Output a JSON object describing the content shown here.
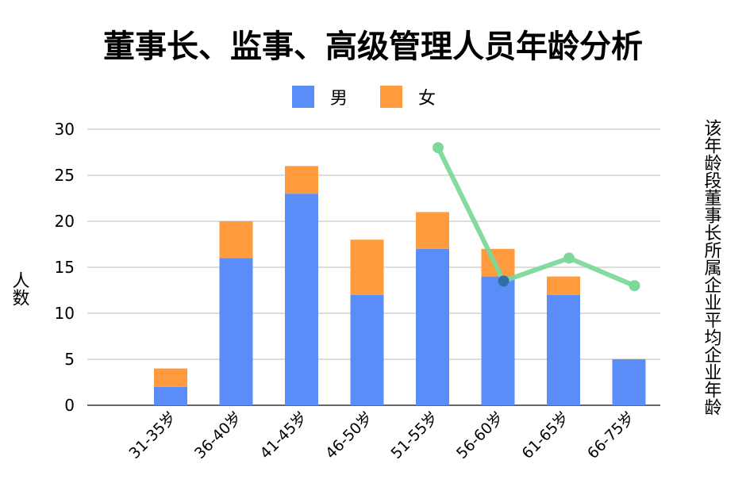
{
  "chart_data": {
    "type": "bar",
    "stacked": true,
    "title": "董事长、监事、高级管理人员年龄分析",
    "ylabel": "人数",
    "y2label": "该年龄段董事长所属企业平均企业年龄",
    "categories": [
      "31-35岁",
      "36-40岁",
      "41-45岁",
      "46-50岁",
      "51-55岁",
      "56-60岁",
      "61-65岁",
      "66-75岁"
    ],
    "yticks": [
      "0",
      "5",
      "10",
      "15",
      "20",
      "25",
      "30"
    ],
    "ylim": [
      0,
      30
    ],
    "grid": true,
    "legend_position": "top-center",
    "series": [
      {
        "name": "男",
        "color": "#5B8DF8",
        "values": [
          2,
          16,
          23,
          12,
          17,
          14,
          12,
          5
        ]
      },
      {
        "name": "女",
        "color": "#FF9A3D",
        "values": [
          2,
          4,
          3,
          6,
          4,
          3,
          2,
          0
        ]
      }
    ],
    "line_series": {
      "color": "#7DD89A",
      "categories": [
        "51-55岁",
        "56-60岁",
        "61-65岁",
        "66-75岁"
      ],
      "values": [
        28,
        13.5,
        16,
        13
      ]
    }
  }
}
